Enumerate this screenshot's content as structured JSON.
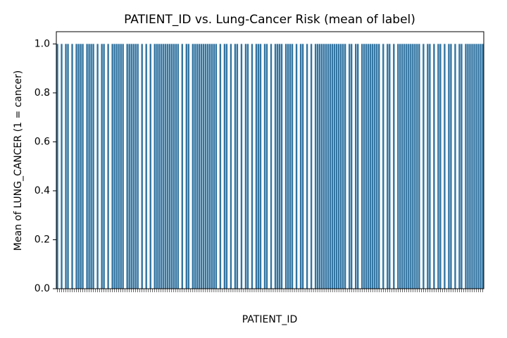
{
  "chart_data": {
    "type": "bar",
    "title": "PATIENT_ID vs. Lung-Cancer Risk (mean of label)",
    "x_label": "PATIENT_ID",
    "y_label": "Mean of LUNG_CANCER (1 = cancer)",
    "color": "#3274a1",
    "categories": [
      null,
      null,
      null,
      null,
      null,
      null,
      null,
      null,
      null,
      null,
      null,
      null,
      null,
      null,
      null,
      null,
      null,
      null,
      null,
      null,
      null,
      null,
      null,
      null,
      null,
      null,
      null,
      null,
      null,
      null,
      null,
      null,
      null,
      null,
      null,
      null,
      null,
      null,
      null,
      null,
      null,
      null,
      null,
      null,
      null,
      null,
      null,
      null,
      null,
      null,
      null,
      null,
      null,
      null,
      null,
      null,
      null,
      null,
      null,
      null,
      null,
      null,
      null,
      null,
      null,
      null,
      null,
      null,
      null,
      null,
      null,
      null,
      null,
      null,
      null,
      null,
      null,
      null,
      null,
      null,
      null,
      null,
      null,
      null,
      null,
      null,
      null,
      null,
      null,
      null,
      null,
      null,
      null,
      null,
      null,
      null,
      null,
      null,
      null,
      null,
      null,
      null,
      null,
      null,
      null,
      null,
      null,
      null,
      null,
      null,
      null,
      null,
      null,
      null,
      null,
      null,
      null,
      null,
      null,
      null,
      null,
      null,
      null,
      null,
      null,
      null,
      null,
      null,
      null,
      null,
      null,
      null,
      null,
      null,
      null,
      null,
      null,
      null,
      null,
      null,
      null,
      null,
      null,
      null,
      null,
      null,
      null,
      null,
      null,
      null,
      null,
      null,
      null,
      null,
      null,
      null,
      null,
      null,
      null,
      null,
      null,
      null,
      null,
      null,
      null,
      null,
      null,
      null,
      null,
      null,
      null,
      null,
      null,
      null,
      null,
      null,
      null,
      null,
      null,
      null,
      null,
      null,
      null,
      null,
      null,
      null,
      null,
      null,
      null,
      null,
      null,
      null,
      null,
      null,
      null,
      null,
      null,
      null,
      null,
      null,
      null,
      null
    ],
    "values": [
      1,
      0,
      1,
      0,
      1,
      1,
      0,
      1,
      0,
      1,
      1,
      1,
      1,
      0,
      1,
      1,
      1,
      1,
      0,
      1,
      0,
      1,
      1,
      0,
      1,
      0,
      1,
      1,
      1,
      1,
      1,
      1,
      0,
      1,
      1,
      1,
      1,
      1,
      1,
      0,
      1,
      0,
      1,
      0,
      1,
      0,
      1,
      1,
      1,
      1,
      1,
      1,
      1,
      1,
      1,
      1,
      1,
      1,
      0,
      1,
      0,
      1,
      1,
      0,
      1,
      1,
      1,
      1,
      1,
      1,
      1,
      1,
      1,
      1,
      1,
      1,
      0,
      1,
      0,
      1,
      1,
      0,
      1,
      0,
      1,
      1,
      0,
      1,
      0,
      1,
      1,
      0,
      1,
      0,
      1,
      1,
      1,
      0,
      1,
      1,
      0,
      1,
      0,
      1,
      1,
      1,
      1,
      0,
      1,
      1,
      1,
      1,
      0,
      1,
      0,
      1,
      1,
      0,
      1,
      0,
      1,
      0,
      1,
      1,
      1,
      1,
      1,
      1,
      1,
      1,
      1,
      1,
      1,
      1,
      1,
      1,
      1,
      0,
      1,
      1,
      0,
      1,
      1,
      0,
      1,
      1,
      1,
      1,
      1,
      1,
      1,
      1,
      1,
      0,
      1,
      0,
      1,
      1,
      0,
      1,
      0,
      1,
      1,
      1,
      1,
      1,
      1,
      1,
      1,
      1,
      1,
      1,
      0,
      1,
      0,
      1,
      1,
      0,
      1,
      0,
      1,
      1,
      0,
      1,
      0,
      1,
      1,
      0,
      1,
      0,
      1,
      1,
      0,
      1,
      1,
      1,
      1,
      1,
      1,
      1,
      1,
      1
    ],
    "ylim": [
      0,
      1.05
    ],
    "yticks": [
      {
        "value": 0,
        "label": "0.0"
      },
      0.2,
      0.4,
      0.6,
      0.8,
      {
        "value": 1,
        "label": "1.0"
      }
    ]
  }
}
